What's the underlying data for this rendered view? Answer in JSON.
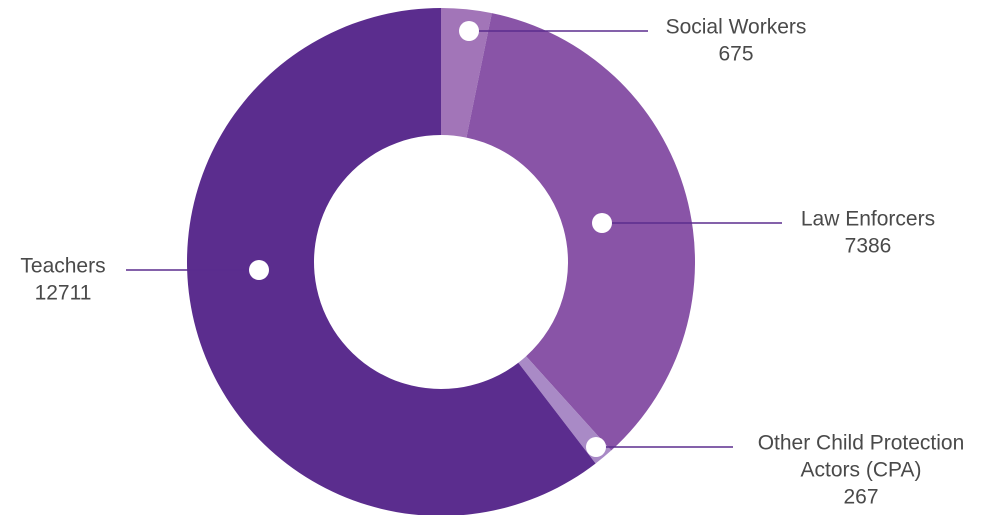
{
  "chart_data": {
    "type": "pie",
    "variant": "donut",
    "title": "",
    "series": [
      {
        "name": "",
        "points": [
          {
            "label_lines": [
              "Social Workers"
            ],
            "value": 675,
            "value_text": "675",
            "color": "#a275b8"
          },
          {
            "label_lines": [
              "Law Enforcers"
            ],
            "value": 7386,
            "value_text": "7386",
            "color": "#8954a7"
          },
          {
            "label_lines": [
              "Other Child Protection",
              "Actors (CPA)"
            ],
            "value": 267,
            "value_text": "267",
            "color": "#a98ac6"
          },
          {
            "label_lines": [
              "Teachers"
            ],
            "value": 12711,
            "value_text": "12711",
            "color": "#5b2d8e"
          }
        ]
      }
    ],
    "legend": "none",
    "data_labels": "outside-with-leader-lines"
  },
  "colors": {
    "leader_line": "#5b2d8e",
    "marker_fill": "#ffffff",
    "label_text": "#4a4a4a",
    "background": "#ffffff"
  }
}
